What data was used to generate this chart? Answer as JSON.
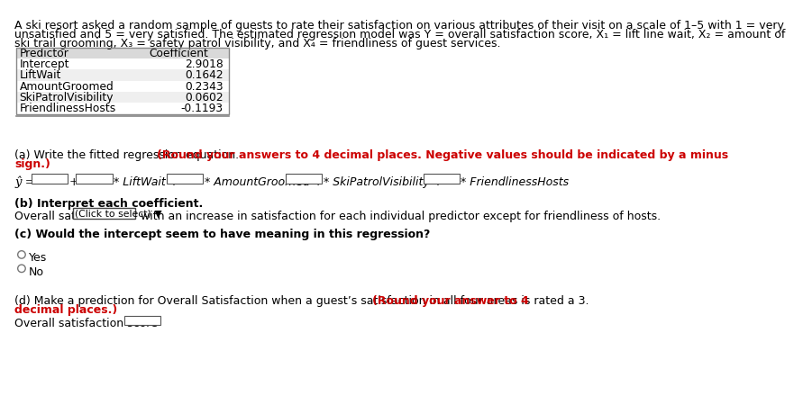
{
  "bg_color": "#ffffff",
  "intro_lines": [
    "A ski resort asked a random sample of guests to rate their satisfaction on various attributes of their visit on a scale of 1–5 with 1 = very",
    "unsatisfied and 5 = very satisfied. The estimated regression model was Y = overall satisfaction score, X₁ = lift line wait, X₂ = amount of",
    "ski trail grooming, X₃ = safety patrol visibility, and X₄ = friendliness of guest services."
  ],
  "table_headers": [
    "Predictor",
    "Coefficient"
  ],
  "table_rows": [
    [
      "Intercept",
      "2.9018"
    ],
    [
      "LiftWait",
      "0.1642"
    ],
    [
      "AmountGroomed",
      "0.2343"
    ],
    [
      "SkiPatrolVisibility",
      "0.0602"
    ],
    [
      "FriendlinessHosts",
      "-0.1193"
    ]
  ],
  "part_a_normal": "(a) Write the fitted regression equation. ",
  "part_a_bold_red": "(Round your answers to 4 decimal places. Negative values should be indicated by a minus",
  "part_a_bold_red2": "sign.)",
  "part_b_bold": "(b) Interpret each coefficient.",
  "part_b_text1": "Overall satisfaction ",
  "part_b_dropdown": "(Click to select) ▼",
  "part_b_text2": " with an increase in satisfaction for each individual predictor except for friendliness of hosts.",
  "part_c_bold": "(c) Would the intercept seem to have meaning in this regression?",
  "part_c_yes": "Yes",
  "part_c_no": "No",
  "part_d_normal": "(d) Make a prediction for Overall Satisfaction when a guest’s satisfaction in all four areas is rated a 3. ",
  "part_d_bold_red": "(Round your answer to 4",
  "part_d_bold_red2": "decimal places.)",
  "part_d_text": "Overall satisfaction score",
  "table_border": "#888888",
  "table_header_bg": "#d9d9d9",
  "table_alt_bg": "#efefef",
  "fs_body": 9.0,
  "fs_table": 8.8
}
